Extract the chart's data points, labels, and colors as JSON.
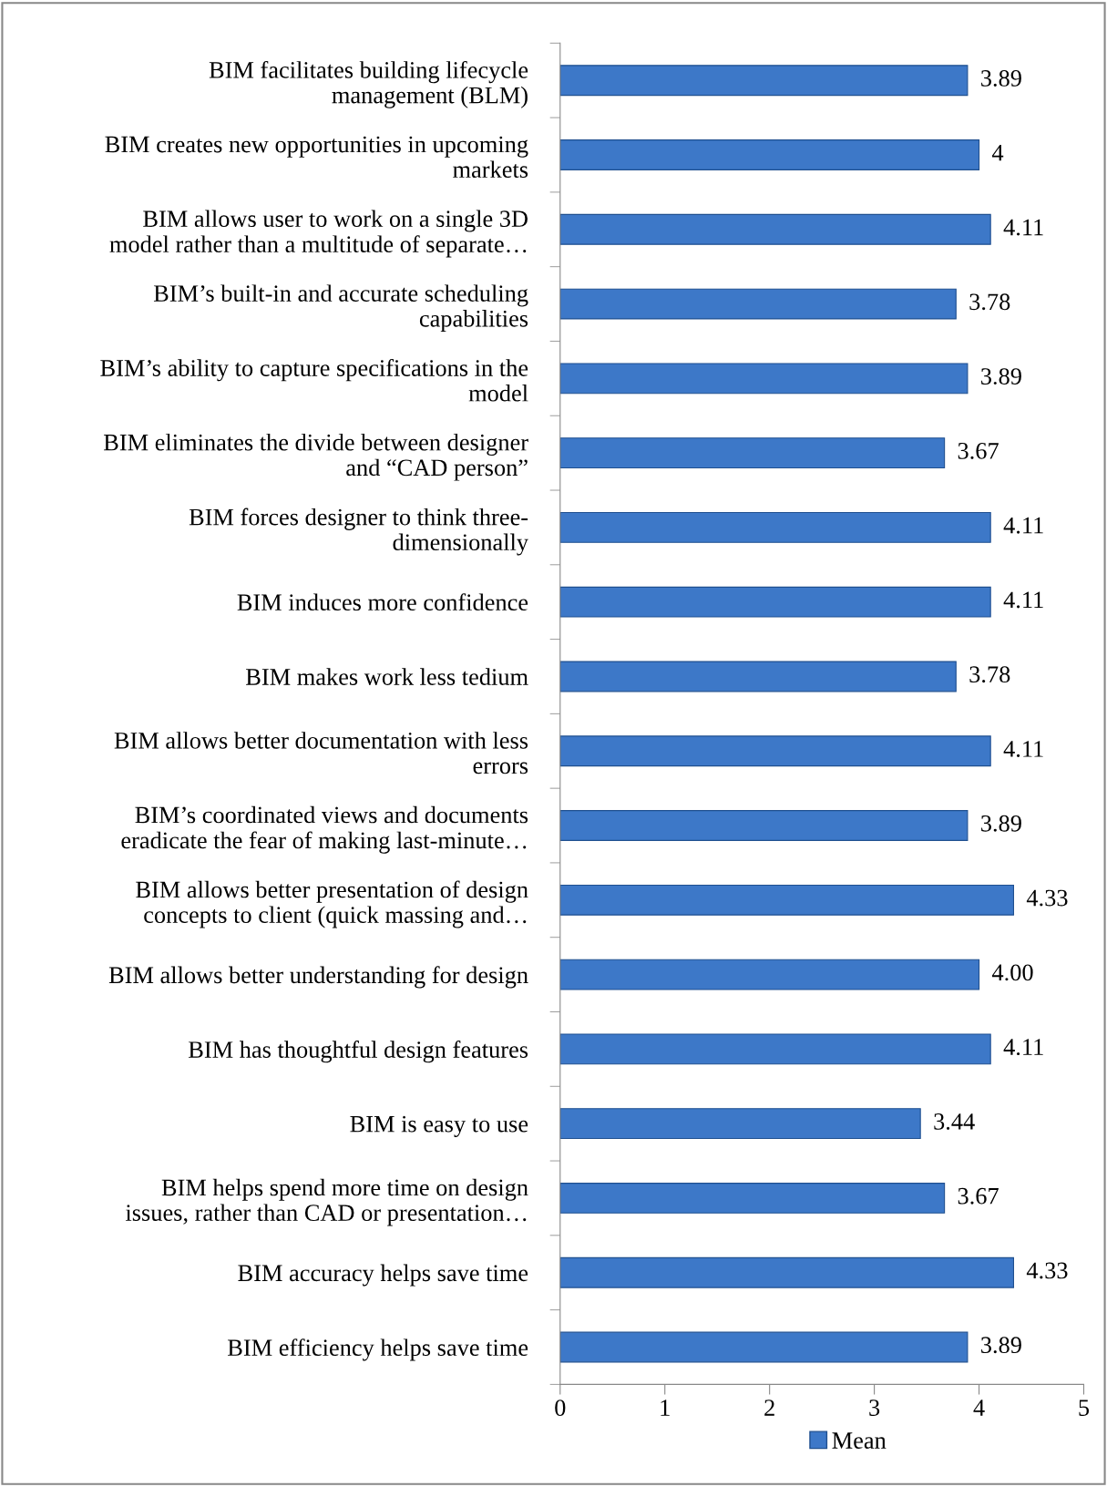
{
  "chart_data": {
    "type": "bar",
    "orientation": "horizontal",
    "categories": [
      "BIM facilitates building lifecycle\nmanagement (BLM)",
      "BIM creates new opportunities in upcoming\nmarkets",
      "BIM allows user to work on a single 3D\nmodel rather than a multitude of separate…",
      "BIM’s built-in and accurate scheduling\ncapabilities",
      "BIM’s ability to capture specifications in the\nmodel",
      "BIM eliminates the divide between designer\nand “CAD person”",
      "BIM forces designer to think three-\ndimensionally",
      "BIM induces more confidence",
      "BIM makes work less tedium",
      "BIM allows better documentation with less\nerrors",
      "BIM’s coordinated views and documents\neradicate the fear of making last-minute…",
      "BIM allows better presentation of design\nconcepts to client (quick massing and…",
      "BIM allows better understanding for design",
      "BIM has thoughtful design features",
      "BIM is easy to use",
      "BIM helps spend more time on design\nissues, rather than CAD or presentation…",
      "BIM accuracy helps save time",
      "BIM efficiency helps save time"
    ],
    "series": [
      {
        "name": "Mean",
        "color": "#3d78c8",
        "values": [
          3.89,
          4,
          4.11,
          3.78,
          3.89,
          3.67,
          4.11,
          4.11,
          3.78,
          4.11,
          3.89,
          4.33,
          4.0,
          4.11,
          3.44,
          3.67,
          4.33,
          3.89
        ],
        "value_labels": [
          "3.89",
          "4",
          "4.11",
          "3.78",
          "3.89",
          "3.67",
          "4.11",
          "4.11",
          "3.78",
          "4.11",
          "3.89",
          "4.33",
          "4.00",
          "4.11",
          "3.44",
          "3.67",
          "4.33",
          "3.89"
        ]
      }
    ],
    "xlim": [
      0,
      5
    ],
    "xticks": [
      0,
      1,
      2,
      3,
      4,
      5
    ],
    "grid": false,
    "legend": "bottom"
  }
}
